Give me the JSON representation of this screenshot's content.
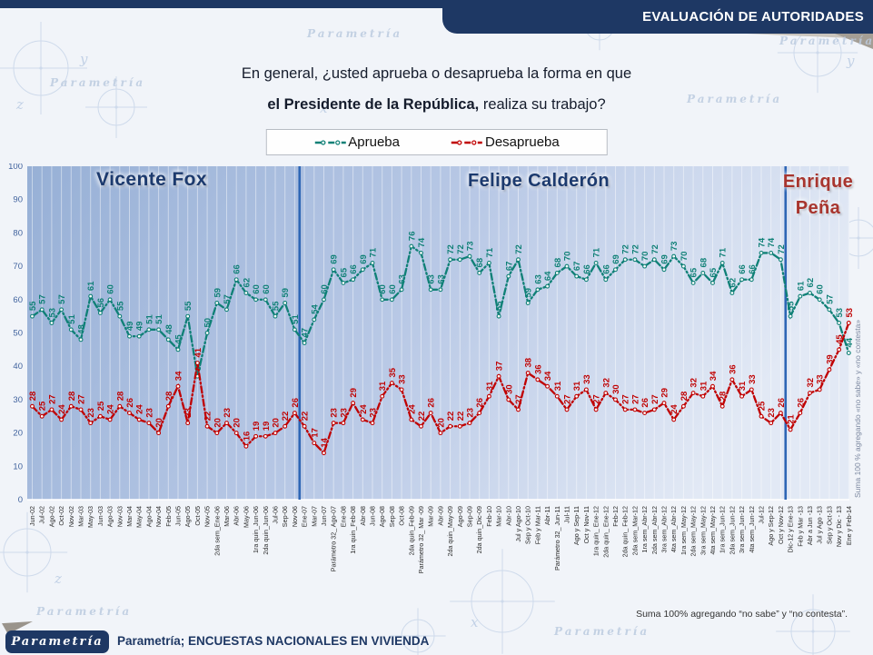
{
  "header": {
    "title": "EVALUACIÓN DE AUTORIDADES"
  },
  "question": {
    "line1": "En general, ¿usted aprueba o desaprueba la forma en que",
    "line2_bold": "el Presidente de la República,",
    "line2_rest": " realiza su trabajo?"
  },
  "legend": [
    {
      "label": "Aprueba",
      "color": "#0f8076"
    },
    {
      "label": "Desaprueba",
      "color": "#c00000"
    }
  ],
  "chart_data": {
    "type": "line",
    "title": "En general, ¿usted aprueba o desaprueba la forma en que el Presidente de la República, realiza su trabajo?",
    "xlabel": "",
    "ylabel": "",
    "ylim": [
      0,
      100
    ],
    "yticks": [
      0,
      10,
      20,
      30,
      40,
      50,
      60,
      70,
      80,
      90,
      100
    ],
    "grid": "vertical",
    "legend_position": "top-center",
    "categories": [
      "Jun-02",
      "Jul-02",
      "Ago-02",
      "Oct-02",
      "Nov-02",
      "Mar-03",
      "May-03",
      "Jun-03",
      "Ago-03",
      "Nov-03",
      "Mar-04",
      "May-04",
      "Ago-04",
      "Nov-04",
      "Feb-05",
      "Jun-05",
      "Ago-05",
      "Oct-05",
      "Nov-05",
      "2da sem_Ene-06",
      "Mar-06",
      "Abr-06",
      "May-06",
      "1ra quin_Jun-06",
      "2da quin_Jun-06",
      "Jul-06",
      "Sep-06",
      "Nov-06",
      "Ene-07",
      "Mar-07",
      "Jun-07",
      "Parámetro 32_ Ago-07",
      "Ene-08",
      "1ra quin_Feb-08",
      "Abr-08",
      "Jun-08",
      "Ago-08",
      "Sep-08",
      "Oct-08",
      "2da quin_Feb-09",
      "Parámetro 32_ Mar -09",
      "Mar-09",
      "Abr-09",
      "2da quin_May-09",
      "Ago-09",
      "Sep-09",
      "2da quin_Dic-09",
      "Feb-10",
      "Mar-10",
      "Abr-10",
      "Jul y Ago-10",
      "Sep y Oct-10",
      "Feb y Mar-11",
      "Abr-11",
      "Parámetro 32_ Jun-11",
      "Jul-11",
      "Ago y Sep-11",
      "Oct y Nov-11",
      "1ra quin_ Ene-12",
      "2da quin_ Ene-12",
      "Feb-12",
      "2da quin_ Feb-12",
      "2da sem_Mar-12",
      "1ra sem_Abr-12",
      "2da sem_Abr-12",
      "3ra sem_Abr-12",
      "4ta sem_Abr-12",
      "1ra sem_May-12",
      "2da sem_May-12",
      "3ra sem_May-12",
      "4ta sem_May-12",
      "1ra sem_Jun-12",
      "2da sem_Jun-12",
      "3ra sem_Jun-12",
      "4ta sem_Jun-12",
      "Jul-12",
      "Ago y Sep-12",
      "Oct y Nov-12",
      "Dic-12 y Ene-13",
      "Feb y Mar -13",
      "Abr a Jun -13",
      "Jul y Ago -13",
      "Sep y Oct-13",
      "Nov y Dic - 13",
      "Ene y Feb-14"
    ],
    "series": [
      {
        "name": "Aprueba",
        "color": "#0f8076",
        "values": [
          55,
          57,
          53,
          57,
          51,
          48,
          61,
          56,
          60,
          55,
          49,
          49,
          51,
          51,
          48,
          45,
          55,
          37,
          50,
          59,
          57,
          66,
          62,
          60,
          60,
          55,
          59,
          51,
          47,
          54,
          60,
          69,
          65,
          66,
          69,
          71,
          60,
          60,
          63,
          76,
          74,
          63,
          63,
          72,
          72,
          73,
          68,
          71,
          55,
          67,
          72,
          59,
          63,
          64,
          68,
          70,
          67,
          66,
          71,
          66,
          69,
          72,
          72,
          70,
          72,
          69,
          73,
          70,
          65,
          68,
          65,
          71,
          62,
          66,
          66,
          74,
          74,
          72,
          55,
          61,
          62,
          60,
          57,
          53,
          44
        ]
      },
      {
        "name": "Desaprueba",
        "color": "#c00000",
        "values": [
          28,
          25,
          27,
          24,
          28,
          27,
          23,
          25,
          24,
          28,
          26,
          24,
          23,
          20,
          28,
          34,
          23,
          41,
          22,
          20,
          23,
          20,
          16,
          19,
          19,
          20,
          22,
          26,
          22,
          17,
          14,
          23,
          23,
          29,
          24,
          23,
          31,
          35,
          33,
          24,
          22,
          26,
          20,
          22,
          22,
          23,
          26,
          31,
          37,
          30,
          27,
          38,
          36,
          34,
          31,
          27,
          31,
          33,
          27,
          32,
          30,
          27,
          27,
          26,
          27,
          29,
          24,
          28,
          32,
          31,
          34,
          28,
          36,
          31,
          33,
          25,
          23,
          26,
          21,
          26,
          32,
          33,
          39,
          45,
          53
        ]
      }
    ],
    "presidents": [
      {
        "name": "Vicente Fox",
        "color": "#1c3a6e"
      },
      {
        "name": "Felipe Calderón",
        "color": "#1c3a6e"
      },
      {
        "name": "Enrique Peña",
        "color": "#a8352e"
      }
    ],
    "dividers_after_index": [
      27,
      77
    ]
  },
  "notes": {
    "right_vertical": "Suma 100 % agregando «no sabe» y «no contesta»",
    "bottom": "Suma 100% agregando “no sabe” y “no contesta”."
  },
  "footer": {
    "logo": "Parametría",
    "text": "Parametría; ENCUESTAS NACIONALES EN VIVIENDA"
  },
  "watermark": {
    "text": "Parametría"
  }
}
